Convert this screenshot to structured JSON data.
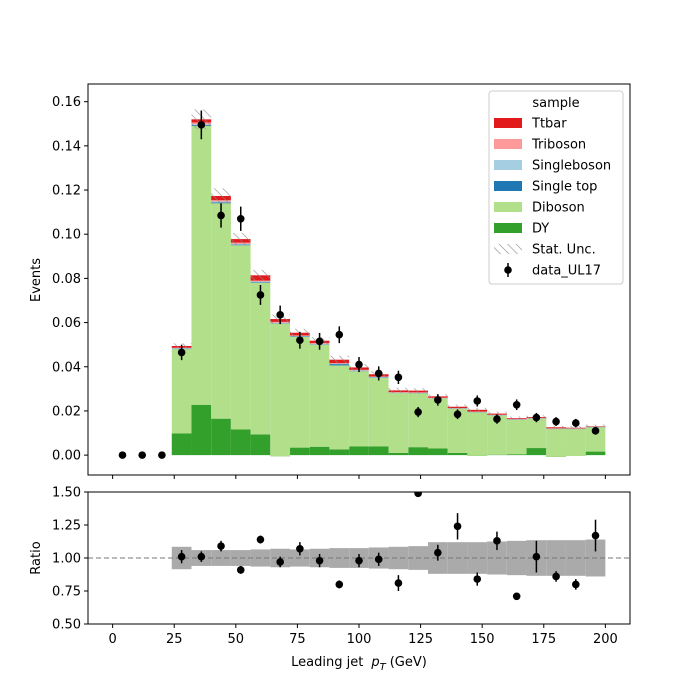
{
  "chart_data": [
    {
      "type": "bar",
      "stacked": true,
      "xlim": [
        -10,
        210
      ],
      "ylim": [
        -0.009,
        0.168
      ],
      "ylabel": "Events",
      "x_ticks": [
        0,
        25,
        50,
        75,
        100,
        125,
        150,
        175,
        200
      ],
      "y_ticks": [
        0.0,
        0.02,
        0.04,
        0.06,
        0.08,
        0.1,
        0.12,
        0.14,
        0.16
      ],
      "y_tick_labels": [
        "0.00",
        "0.02",
        "0.04",
        "0.06",
        "0.08",
        "0.10",
        "0.12",
        "0.14",
        "0.16"
      ],
      "bin_edges": [
        0,
        8,
        16,
        24,
        32,
        40,
        48,
        56,
        64,
        72,
        80,
        88,
        96,
        104,
        112,
        120,
        128,
        136,
        144,
        152,
        160,
        168,
        176,
        184,
        192,
        200
      ],
      "series": [
        {
          "name": "DY",
          "color": "#33a02c",
          "values": [
            0,
            0,
            0,
            0.0098,
            0.0228,
            0.0165,
            0.0116,
            0.0094,
            -0.0005,
            0.0034,
            0.0038,
            0.0026,
            0.004,
            0.004,
            0.001,
            0.0036,
            0.003,
            0.001,
            -0.0003,
            0.0002,
            0.0004,
            0.0032,
            -0.0008,
            -0.0004,
            0.0016
          ]
        },
        {
          "name": "Diboson",
          "color": "#b2df8a",
          "values": [
            0,
            0,
            0,
            0.0382,
            0.1262,
            0.0975,
            0.0834,
            0.0686,
            0.06,
            0.0501,
            0.0462,
            0.038,
            0.034,
            0.031,
            0.0271,
            0.0244,
            0.0226,
            0.02,
            0.0197,
            0.0178,
            0.0156,
            0.0133,
            0.0126,
            0.0122,
            0.011
          ]
        },
        {
          "name": "Single top",
          "color": "#1f78b4",
          "values": [
            0,
            0,
            0,
            0.0002,
            0.0004,
            0.0004,
            0.0003,
            0.0003,
            0.0002,
            0.0002,
            0.0002,
            0.0006,
            0.0002,
            0.0002,
            0.0001,
            0.0001,
            0.0001,
            0.0001,
            0.0001,
            0.0001,
            0.0001,
            0.0001,
            0.0001,
            0.0001,
            0.0001
          ]
        },
        {
          "name": "Singleboson",
          "color": "#a6cee3",
          "values": [
            0,
            0,
            0,
            0.0002,
            0.0004,
            0.0004,
            0.0003,
            0.0003,
            0.0002,
            0.0002,
            0.0002,
            0.0002,
            0.0002,
            0.0002,
            0.0001,
            0.0001,
            0.0001,
            0.0001,
            0.0001,
            0.0001,
            0.0001,
            0.0001,
            0.0001,
            0.0001,
            0.0001
          ]
        },
        {
          "name": "Triboson",
          "color": "#fb9a99",
          "values": [
            0,
            0,
            0,
            0.0002,
            0.0008,
            0.0006,
            0.0006,
            0.0004,
            0.0004,
            0.0003,
            0.0003,
            0.0002,
            0.0002,
            0.0002,
            0.0002,
            0.0002,
            0.0002,
            0.0001,
            0.0001,
            0.0001,
            0.0001,
            0.0001,
            0.0001,
            0.0001,
            0.0001
          ]
        },
        {
          "name": "Ttbar",
          "color": "#e31a1c",
          "values": [
            0,
            0,
            0,
            0.0008,
            0.0014,
            0.0019,
            0.0016,
            0.0024,
            0.0013,
            0.0012,
            0.0011,
            0.0016,
            0.0011,
            0.001,
            0.0008,
            0.0008,
            0.0006,
            0.0006,
            0.0008,
            0.0005,
            0.0004,
            0.0004,
            0.0005,
            0.0003,
            0.0002
          ]
        }
      ],
      "stat_unc": [
        0,
        0,
        0,
        0.0012,
        0.0045,
        0.0035,
        0.0028,
        0.0024,
        0.002,
        0.0018,
        0.0016,
        0.0018,
        0.0015,
        0.0014,
        0.0012,
        0.0011,
        0.001,
        0.001,
        0.0009,
        0.0009,
        0.0008,
        0.0008,
        0.0007,
        0.0007,
        0.0007
      ],
      "data": {
        "name": "data_UL17",
        "x": [
          4,
          12,
          20,
          28,
          36,
          44,
          52,
          60,
          68,
          76,
          84,
          92,
          100,
          108,
          116,
          124,
          132,
          140,
          148,
          156,
          164,
          172,
          180,
          188,
          196
        ],
        "y": [
          0.0,
          0.0,
          0.0,
          0.0465,
          0.1495,
          0.1085,
          0.107,
          0.0725,
          0.0635,
          0.052,
          0.0515,
          0.0545,
          0.041,
          0.037,
          0.0352,
          0.0195,
          0.025,
          0.0185,
          0.0245,
          0.0163,
          0.0228,
          0.017,
          0.0152,
          0.0145,
          0.011
        ],
        "yerr": [
          0,
          0,
          0,
          0.0035,
          0.0065,
          0.0055,
          0.0055,
          0.0045,
          0.0042,
          0.0038,
          0.0038,
          0.0038,
          0.0034,
          0.0032,
          0.003,
          0.0023,
          0.0026,
          0.0022,
          0.0025,
          0.0021,
          0.0024,
          0.0021,
          0.002,
          0.0019,
          0.0017
        ]
      },
      "legend": {
        "title": "sample",
        "placement": "top-right",
        "entries": [
          "Ttbar",
          "Triboson",
          "Singleboson",
          "Single top",
          "Diboson",
          "DY",
          "Stat. Unc.",
          "data_UL17"
        ]
      }
    },
    {
      "type": "scatter",
      "xlim": [
        -10,
        210
      ],
      "ylim": [
        0.5,
        1.5
      ],
      "xlabel_prefix": "Leading jet",
      "xlabel_var": "p",
      "xlabel_sub": "T",
      "xlabel_unit": "(GeV)",
      "ylabel": "Ratio",
      "x_ticks": [
        0,
        25,
        50,
        75,
        100,
        125,
        150,
        175,
        200
      ],
      "y_ticks": [
        0.5,
        0.75,
        1.0,
        1.25,
        1.5
      ],
      "y_tick_labels": [
        "0.50",
        "0.75",
        "1.00",
        "1.25",
        "1.50"
      ],
      "reference_line": 1.0,
      "band_bin_edges": [
        24,
        32,
        40,
        48,
        56,
        64,
        72,
        80,
        88,
        96,
        104,
        112,
        120,
        128,
        136,
        144,
        152,
        160,
        168,
        176,
        184,
        192,
        200
      ],
      "band_halfwidth": [
        0.085,
        0.06,
        0.06,
        0.06,
        0.065,
        0.07,
        0.065,
        0.07,
        0.075,
        0.075,
        0.08,
        0.085,
        0.09,
        0.12,
        0.12,
        0.12,
        0.125,
        0.13,
        0.135,
        0.135,
        0.135,
        0.14,
        0.155
      ],
      "band_center": [
        1.0,
        1.0,
        1.0,
        1.0,
        1.0,
        1.0,
        1.0,
        1.0,
        1.0,
        1.0,
        1.0,
        1.0,
        1.0,
        1.0,
        1.0,
        1.0,
        1.0,
        1.0,
        1.0,
        1.0,
        1.0,
        1.0,
        1.02
      ],
      "points": {
        "x": [
          28,
          36,
          44,
          52,
          60,
          68,
          76,
          84,
          92,
          100,
          108,
          116,
          124,
          132,
          140,
          148,
          156,
          164,
          172,
          180,
          188,
          196
        ],
        "y": [
          1.01,
          1.01,
          1.09,
          0.91,
          1.14,
          0.97,
          1.07,
          0.98,
          0.8,
          0.98,
          0.99,
          0.81,
          1.49,
          1.04,
          1.24,
          0.84,
          1.13,
          0.71,
          1.01,
          0.86,
          0.8,
          1.17
        ],
        "yerr": [
          0.05,
          0.04,
          0.04,
          0.03,
          0.03,
          0.04,
          0.05,
          0.05,
          0.03,
          0.05,
          0.05,
          0.06,
          0.0,
          0.06,
          0.1,
          0.05,
          0.07,
          0.0,
          0.12,
          0.04,
          0.04,
          0.12
        ]
      }
    }
  ]
}
